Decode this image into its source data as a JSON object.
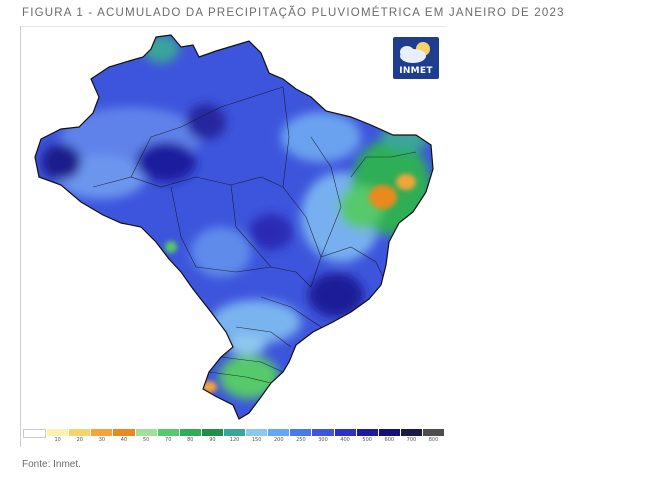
{
  "figure": {
    "title": "FIGURA 1 - ACUMULADO DA PRECIPITAÇÃO PLUVIOMÉTRICA EM JANEIRO DE 2023",
    "source": "Fonte: Inmet."
  },
  "logo": {
    "text": "INMET"
  },
  "legend": {
    "bins": [
      {
        "label": "",
        "color": "#ffffff"
      },
      {
        "label": "10",
        "color": "#fbf1b2"
      },
      {
        "label": "20",
        "color": "#f7d36a"
      },
      {
        "label": "30",
        "color": "#f3a43a"
      },
      {
        "label": "40",
        "color": "#e98a1e"
      },
      {
        "label": "50",
        "color": "#9fe19a"
      },
      {
        "label": "70",
        "color": "#56c96b"
      },
      {
        "label": "80",
        "color": "#2fae57"
      },
      {
        "label": "90",
        "color": "#1d8f46"
      },
      {
        "label": "120",
        "color": "#3aa59a"
      },
      {
        "label": "150",
        "color": "#8ec7ee"
      },
      {
        "label": "200",
        "color": "#63a8f0"
      },
      {
        "label": "250",
        "color": "#4a79ea"
      },
      {
        "label": "300",
        "color": "#3f55df"
      },
      {
        "label": "400",
        "color": "#2c2fc8"
      },
      {
        "label": "500",
        "color": "#1c1aa0"
      },
      {
        "label": "600",
        "color": "#14127a"
      },
      {
        "label": "700",
        "color": "#1a1a4a"
      },
      {
        "label": "800",
        "color": "#4d4d4d"
      }
    ]
  },
  "map": {
    "region": "Brasil",
    "dominant_color": "#3d55dc",
    "wet_core_color": "#1f1e9e",
    "dry_northeast_colors": [
      "#2fae57",
      "#f3a43a"
    ],
    "south_colors": [
      "#56c96b",
      "#8ec7ee"
    ]
  }
}
